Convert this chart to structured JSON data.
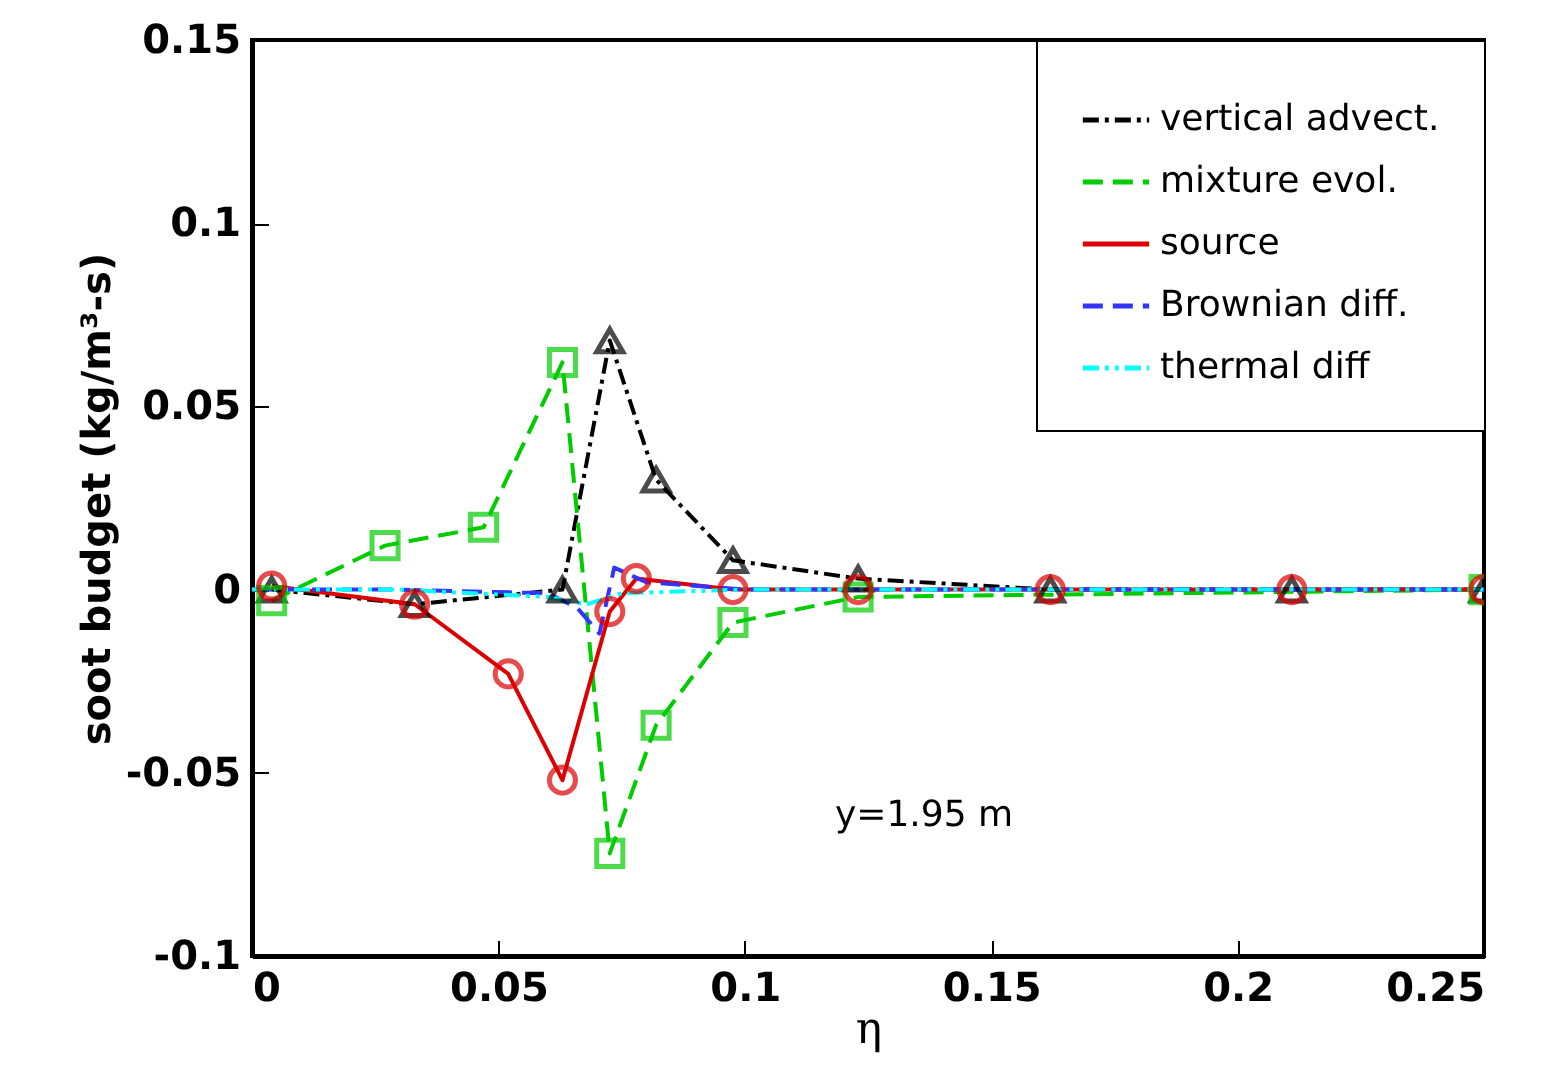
{
  "chart_data": {
    "type": "line",
    "xlabel": "η",
    "ylabel": "soot budget (kg/m³-s)",
    "xlim": [
      0,
      0.25
    ],
    "xticks": [
      0,
      0.05,
      0.1,
      0.15,
      0.2,
      0.25
    ],
    "ylim": [
      -0.1,
      0.15
    ],
    "yticks": [
      -0.1,
      -0.05,
      0,
      0.05,
      0.1,
      0.15
    ],
    "grid": false,
    "legend": "top right",
    "annotations": [
      "y=1.95 m"
    ],
    "series": [
      {
        "name": "vertical advect.",
        "color": "#000000",
        "marker": "triangle",
        "line_style": "dashdot",
        "x": [
          0.004,
          0.033,
          0.063,
          0.0726,
          0.082,
          0.0976,
          0.123,
          0.162,
          0.211,
          0.25
        ],
        "values": [
          0,
          -0.004,
          0,
          0.068,
          0.03,
          0.008,
          0.003,
          0,
          0,
          0
        ]
      },
      {
        "name": "mixture evol.",
        "color": "#00cc00",
        "marker": "square",
        "line_style": "dashed",
        "x": [
          0.004,
          0.027,
          0.047,
          0.063,
          0.0726,
          0.082,
          0.0976,
          0.123,
          0.25
        ],
        "values": [
          -0.003,
          0.012,
          0.017,
          0.062,
          -0.072,
          -0.037,
          -0.009,
          -0.002,
          0
        ]
      },
      {
        "name": "source",
        "color": "#dd0000",
        "marker": "circle",
        "line_style": "solid",
        "x": [
          0.004,
          0.033,
          0.052,
          0.063,
          0.0726,
          0.078,
          0.0976,
          0.123,
          0.162,
          0.211,
          0.25
        ],
        "values": [
          0.001,
          -0.004,
          -0.023,
          -0.052,
          -0.006,
          0.003,
          0,
          0,
          0,
          0,
          0
        ]
      },
      {
        "name": "Brownian diff.",
        "color": "#3333ff",
        "marker": "none",
        "line_style": "dashed",
        "x": [
          0,
          0.03,
          0.06,
          0.066,
          0.0705,
          0.0735,
          0.08,
          0.1,
          0.25
        ],
        "values": [
          0,
          0,
          -0.001,
          -0.005,
          -0.012,
          0.006,
          0.002,
          0,
          0
        ]
      },
      {
        "name": "thermal diff",
        "color": "#00ffff",
        "marker": "none",
        "line_style": "dotted",
        "x": [
          0,
          0.03,
          0.06,
          0.068,
          0.075,
          0.1,
          0.25
        ],
        "values": [
          0,
          0,
          -0.002,
          -0.004,
          -0.001,
          0,
          0
        ]
      }
    ]
  }
}
